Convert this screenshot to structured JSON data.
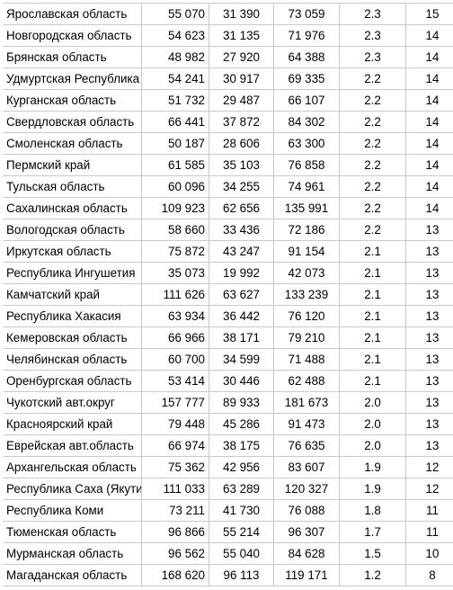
{
  "rows": [
    {
      "region": "Ярославская область",
      "v1": "55 070",
      "v2": "31 390",
      "v3": "73 059",
      "ratio": "2.3",
      "rank": "15"
    },
    {
      "region": "Новгородская область",
      "v1": "54 623",
      "v2": "31 135",
      "v3": "71 976",
      "ratio": "2.3",
      "rank": "14"
    },
    {
      "region": "Брянская область",
      "v1": "48 982",
      "v2": "27 920",
      "v3": "64 388",
      "ratio": "2.3",
      "rank": "14"
    },
    {
      "region": "Удмуртская Республика",
      "v1": "54 241",
      "v2": "30 917",
      "v3": "69 335",
      "ratio": "2.2",
      "rank": "14"
    },
    {
      "region": "Курганская область",
      "v1": "51 732",
      "v2": "29 487",
      "v3": "66 107",
      "ratio": "2.2",
      "rank": "14"
    },
    {
      "region": "Свердловская область",
      "v1": "66 441",
      "v2": "37 872",
      "v3": "84 302",
      "ratio": "2.2",
      "rank": "14"
    },
    {
      "region": "Смоленская область",
      "v1": "50 187",
      "v2": "28 606",
      "v3": "63 300",
      "ratio": "2.2",
      "rank": "14"
    },
    {
      "region": "Пермский край",
      "v1": "61 585",
      "v2": "35 103",
      "v3": "76 858",
      "ratio": "2.2",
      "rank": "14"
    },
    {
      "region": "Тульская область",
      "v1": "60 096",
      "v2": "34 255",
      "v3": "74 961",
      "ratio": "2.2",
      "rank": "14"
    },
    {
      "region": "Сахалинская область",
      "v1": "109 923",
      "v2": "62 656",
      "v3": "135 991",
      "ratio": "2.2",
      "rank": "14"
    },
    {
      "region": "Вологодская область",
      "v1": "58 660",
      "v2": "33 436",
      "v3": "72 186",
      "ratio": "2.2",
      "rank": "13"
    },
    {
      "region": "Иркутская область",
      "v1": "75 872",
      "v2": "43 247",
      "v3": "91 154",
      "ratio": "2.1",
      "rank": "13"
    },
    {
      "region": "Республика Ингушетия",
      "v1": "35 073",
      "v2": "19 992",
      "v3": "42 073",
      "ratio": "2.1",
      "rank": "13"
    },
    {
      "region": "Камчатский край",
      "v1": "111 626",
      "v2": "63 627",
      "v3": "133 239",
      "ratio": "2.1",
      "rank": "13"
    },
    {
      "region": "Республика Хакасия",
      "v1": "63 934",
      "v2": "36 442",
      "v3": "76 120",
      "ratio": "2.1",
      "rank": "13"
    },
    {
      "region": "Кемеровская область",
      "v1": "66 966",
      "v2": "38 171",
      "v3": "79 210",
      "ratio": "2.1",
      "rank": "13"
    },
    {
      "region": "Челябинская область",
      "v1": "60 700",
      "v2": "34 599",
      "v3": "71 488",
      "ratio": "2.1",
      "rank": "13"
    },
    {
      "region": "Оренбургская область",
      "v1": "53 414",
      "v2": "30 446",
      "v3": "62 488",
      "ratio": "2.1",
      "rank": "13"
    },
    {
      "region": "Чукотский авт.округ",
      "v1": "157 777",
      "v2": "89 933",
      "v3": "181 673",
      "ratio": "2.0",
      "rank": "13"
    },
    {
      "region": "Красноярский край",
      "v1": "79 448",
      "v2": "45 286",
      "v3": "91 473",
      "ratio": "2.0",
      "rank": "13"
    },
    {
      "region": "Еврейская авт.область",
      "v1": "66 974",
      "v2": "38 175",
      "v3": "76 635",
      "ratio": "2.0",
      "rank": "13"
    },
    {
      "region": "Архангельская область",
      "v1": "75 362",
      "v2": "42 956",
      "v3": "83 607",
      "ratio": "1.9",
      "rank": "12"
    },
    {
      "region": "Республика Саха (Якутия)",
      "v1": "111 033",
      "v2": "63 289",
      "v3": "120 327",
      "ratio": "1.9",
      "rank": "12"
    },
    {
      "region": "Республика Коми",
      "v1": "73 211",
      "v2": "41 730",
      "v3": "76 088",
      "ratio": "1.8",
      "rank": "11"
    },
    {
      "region": "Тюменская область",
      "v1": "96 866",
      "v2": "55 214",
      "v3": "96 307",
      "ratio": "1.7",
      "rank": "11"
    },
    {
      "region": "Мурманская область",
      "v1": "96 562",
      "v2": "55 040",
      "v3": "84 628",
      "ratio": "1.5",
      "rank": "10"
    },
    {
      "region": "Магаданская область",
      "v1": "168 620",
      "v2": "96 113",
      "v3": "119 171",
      "ratio": "1.2",
      "rank": "8"
    }
  ]
}
